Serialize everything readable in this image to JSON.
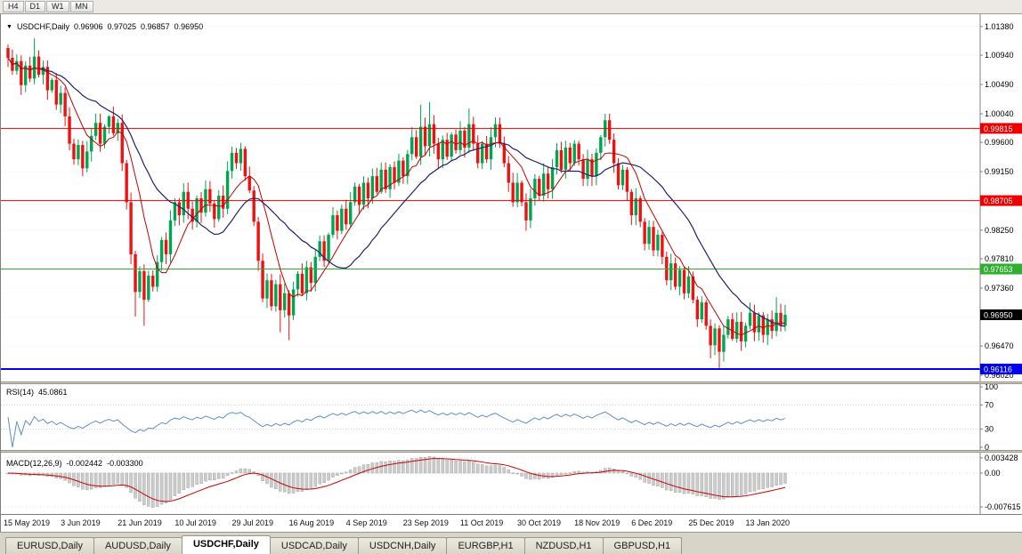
{
  "toolbar": {
    "period_buttons": [
      "H4",
      "D1",
      "W1",
      "MN"
    ]
  },
  "chart_header": {
    "symbol": "USDCHF,Daily",
    "open": "0.96906",
    "high": "0.97025",
    "low": "0.96857",
    "close": "0.96950"
  },
  "main_chart": {
    "y_ticks": [
      "1.01380",
      "1.00940",
      "1.00490",
      "1.00040",
      "0.99600",
      "0.99150",
      "0.98700",
      "0.98250",
      "0.97810",
      "0.97360",
      "0.96910",
      "0.96470",
      "0.96020"
    ],
    "levels": [
      {
        "label": "0.99815",
        "price": 0.99815,
        "color": "#ee0000",
        "width": 1
      },
      {
        "label": "0.98705",
        "price": 0.98705,
        "color": "#ee0000",
        "width": 1
      },
      {
        "label": "0.97653",
        "price": 0.97653,
        "color": "#2fae2f",
        "width": 1
      },
      {
        "label": "0.96116",
        "price": 0.96116,
        "color": "#0000ee",
        "width": 2
      }
    ],
    "current_price_label": {
      "label": "0.96950",
      "price": 0.9695,
      "bg": "#000000",
      "fg": "#ffffff"
    },
    "x_labels": [
      {
        "i": 0,
        "label": "15 May 2019"
      },
      {
        "i": 13,
        "label": "3 Jun 2019"
      },
      {
        "i": 26,
        "label": "21 Jun 2019"
      },
      {
        "i": 39,
        "label": "10 Jul 2019"
      },
      {
        "i": 52,
        "label": "29 Jul 2019"
      },
      {
        "i": 65,
        "label": "16 Aug 2019"
      },
      {
        "i": 78,
        "label": "4 Sep 2019"
      },
      {
        "i": 91,
        "label": "23 Sep 2019"
      },
      {
        "i": 104,
        "label": "11 Oct 2019"
      },
      {
        "i": 117,
        "label": "30 Oct 2019"
      },
      {
        "i": 130,
        "label": "18 Nov 2019"
      },
      {
        "i": 143,
        "label": "6 Dec 2019"
      },
      {
        "i": 156,
        "label": "25 Dec 2019"
      },
      {
        "i": 169,
        "label": "13 Jan 2020"
      }
    ]
  },
  "rsi_panel": {
    "name": "RSI(14)",
    "value": "45.0861",
    "y_ticks": [
      "100",
      "70",
      "30",
      "0"
    ],
    "level_lines": [
      70,
      30
    ],
    "line_color": "#6090c0"
  },
  "macd_panel": {
    "name": "MACD(12,26,9)",
    "macd_value": "-0.002442",
    "signal_value": "-0.003300",
    "y_ticks": [
      {
        "v": 0.003428,
        "label": "0.003428"
      },
      {
        "v": 0,
        "label": "0.00"
      },
      {
        "v": -0.007615,
        "label": "-0.007615"
      }
    ],
    "y_range": [
      0.0046,
      -0.0092
    ],
    "histogram_color": "#cccccc",
    "histogram_border": "#a8a8a8",
    "signal_color": "#cc0000"
  },
  "tabs": {
    "items": [
      {
        "label": "EURUSD,Daily",
        "active": false
      },
      {
        "label": "AUDUSD,Daily",
        "active": false
      },
      {
        "label": "USDCHF,Daily",
        "active": true
      },
      {
        "label": "USDCAD,Daily",
        "active": false
      },
      {
        "label": "USDCNH,Daily",
        "active": false
      },
      {
        "label": "EURGBP,H1",
        "active": false
      },
      {
        "label": "NZDUSD,H1",
        "active": false
      },
      {
        "label": "GBPUSD,H1",
        "active": false
      }
    ]
  },
  "chart_data": {
    "type": "candlestick",
    "symbol": "USDCHF",
    "timeframe": "Daily",
    "ohlc_display": {
      "open": 0.96906,
      "high": 0.97025,
      "low": 0.96857,
      "close": 0.9695
    },
    "y_axis_range": {
      "top": 1.0157,
      "bottom": 0.95924
    },
    "x_axis_dates": [
      "15 May 2019",
      "3 Jun 2019",
      "21 Jun 2019",
      "10 Jul 2019",
      "29 Jul 2019",
      "16 Aug 2019",
      "4 Sep 2019",
      "23 Sep 2019",
      "11 Oct 2019",
      "30 Oct 2019",
      "18 Nov 2019",
      "6 Dec 2019",
      "25 Dec 2019",
      "13 Jan 2020"
    ],
    "horizontal_levels": [
      0.99815,
      0.98705,
      0.97653,
      0.96116
    ],
    "current_price": 0.9695,
    "colors": {
      "up": "#00a550",
      "down": "#ee1111"
    },
    "candles": {
      "first_open": 1.0105,
      "closes": [
        1.009,
        1.007,
        1.0085,
        1.0048,
        1.0078,
        1.0058,
        1.0092,
        1.0064,
        1.0076,
        1.004,
        1.0056,
        1.0018,
        1.0036,
        1.0,
        0.9958,
        0.9934,
        0.9956,
        0.992,
        0.9946,
        0.997,
        0.999,
        0.9958,
        0.9984,
        1.0,
        0.9974,
        0.999,
        0.9928,
        0.9868,
        0.9788,
        0.973,
        0.9762,
        0.9718,
        0.9755,
        0.9738,
        0.9776,
        0.981,
        0.9788,
        0.984,
        0.9868,
        0.9848,
        0.9884,
        0.9858,
        0.9838,
        0.9874,
        0.9852,
        0.9888,
        0.9866,
        0.9842,
        0.9878,
        0.9858,
        0.9916,
        0.9944,
        0.9928,
        0.995,
        0.9908,
        0.9886,
        0.9838,
        0.9778,
        0.972,
        0.9748,
        0.9708,
        0.9742,
        0.9702,
        0.9728,
        0.9694,
        0.9734,
        0.9758,
        0.9728,
        0.9768,
        0.9744,
        0.9784,
        0.9808,
        0.9778,
        0.9818,
        0.9848,
        0.9824,
        0.9858,
        0.9834,
        0.9868,
        0.9892,
        0.9864,
        0.9898,
        0.9874,
        0.9908,
        0.9884,
        0.9918,
        0.9888,
        0.9922,
        0.9898,
        0.9932,
        0.9908,
        0.9942,
        0.9968,
        0.9938,
        0.9984,
        0.9954,
        0.9988,
        0.9958,
        0.9934,
        0.9964,
        0.9938,
        0.9972,
        0.9948,
        0.9978,
        0.9952,
        0.9988,
        0.9958,
        0.9928,
        0.9958,
        0.9934,
        0.9968,
        0.9988,
        0.9958,
        0.9928,
        0.9898,
        0.9868,
        0.9898,
        0.9868,
        0.984,
        0.9874,
        0.9904,
        0.9878,
        0.9912,
        0.9888,
        0.9922,
        0.9948,
        0.9918,
        0.9952,
        0.9928,
        0.9958,
        0.9934,
        0.9904,
        0.9934,
        0.9908,
        0.9944,
        0.9968,
        0.9994,
        0.9964,
        0.9928,
        0.9894,
        0.9918,
        0.9884,
        0.9848,
        0.9874,
        0.9838,
        0.9804,
        0.983,
        0.9794,
        0.9818,
        0.9784,
        0.9748,
        0.9774,
        0.9738,
        0.9764,
        0.9728,
        0.9754,
        0.9718,
        0.9688,
        0.9714,
        0.9678,
        0.9648,
        0.9674,
        0.9638,
        0.9664,
        0.9688,
        0.9658,
        0.9684,
        0.9654,
        0.9678,
        0.9698,
        0.9668,
        0.9694,
        0.9664,
        0.9688,
        0.967,
        0.9698,
        0.9678,
        0.9695
      ],
      "wick_overrides": {
        "6": {
          "high": 1.012
        },
        "23": {
          "high": 1.0002
        },
        "29": {
          "low": 0.9692
        },
        "31": {
          "low": 0.9678
        },
        "62": {
          "low": 0.9668
        },
        "64": {
          "low": 0.9656
        },
        "94": {
          "high": 1.0018
        },
        "96": {
          "high": 1.0022
        },
        "105": {
          "high": 1.0012
        },
        "136": {
          "high": 1.0004
        },
        "160": {
          "low": 0.9628
        },
        "162": {
          "low": 0.9613
        },
        "175": {
          "high": 0.9722
        }
      }
    },
    "overlays": {
      "ma_fast": {
        "period": 8,
        "color": "#c40000"
      },
      "ma_slow": {
        "period": 21,
        "color": "#202070"
      }
    },
    "indicators": {
      "rsi": {
        "period": 14,
        "current": 45.0861
      },
      "macd": {
        "fast": 12,
        "slow": 26,
        "signal": 9,
        "current_macd": -0.002442,
        "current_signal": -0.0033
      }
    }
  }
}
